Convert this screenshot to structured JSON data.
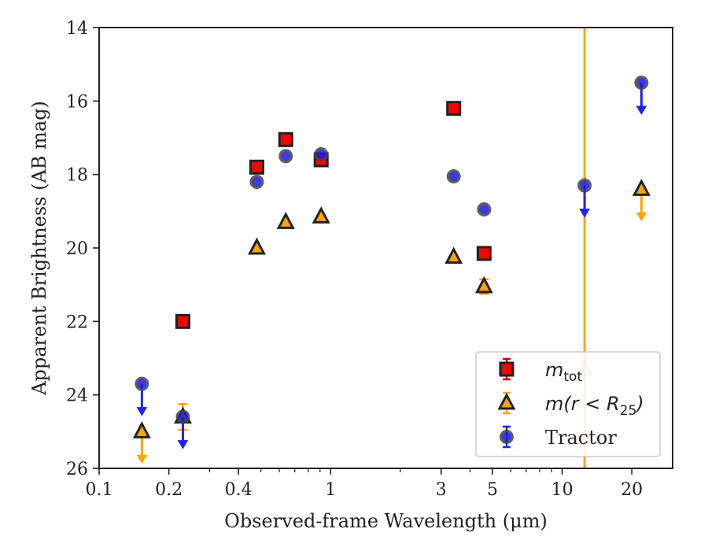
{
  "chart_data": {
    "type": "scatter",
    "xlabel": "Observed-frame Wavelength (μm)",
    "ylabel": "Apparent Brightness (AB mag)",
    "xscale": "log",
    "yaxis_inverted": true,
    "xlim": [
      0.1,
      30
    ],
    "ylim": [
      14,
      26
    ],
    "xticks": [
      {
        "value": 0.1,
        "label": "0.1"
      },
      {
        "value": 0.2,
        "label": "0.2"
      },
      {
        "value": 0.4,
        "label": "0.4"
      },
      {
        "value": 1,
        "label": "1"
      },
      {
        "value": 3,
        "label": "3"
      },
      {
        "value": 5,
        "label": "5"
      },
      {
        "value": 10,
        "label": "10"
      },
      {
        "value": 20,
        "label": "20"
      }
    ],
    "yticks": [
      {
        "value": 14,
        "label": "14"
      },
      {
        "value": 16,
        "label": "16"
      },
      {
        "value": 18,
        "label": "18"
      },
      {
        "value": 20,
        "label": "20"
      },
      {
        "value": 22,
        "label": "22"
      },
      {
        "value": 24,
        "label": "24"
      },
      {
        "value": 26,
        "label": "26"
      }
    ],
    "vertical_line": {
      "x": 12.5,
      "color": "#ffa500"
    },
    "legend": {
      "placement": "lower-right",
      "entries": [
        {
          "series": "m_tot",
          "base": "m",
          "sub": "tot",
          "italic": true
        },
        {
          "series": "m_r25",
          "base": "m(r < R",
          "sub": "25",
          "tail": ")",
          "italic": true
        },
        {
          "series": "tractor",
          "label": "Tractor",
          "italic": false
        }
      ]
    },
    "series": [
      {
        "id": "m_tot",
        "marker": "square",
        "fill": "#ff0000",
        "edge": "#222222",
        "errcolor": "#cc0000",
        "points": [
          {
            "x": 0.23,
            "y": 22.0
          },
          {
            "x": 0.48,
            "y": 17.8
          },
          {
            "x": 0.64,
            "y": 17.05
          },
          {
            "x": 0.91,
            "y": 17.6
          },
          {
            "x": 3.4,
            "y": 16.2
          },
          {
            "x": 4.6,
            "y": 20.15
          }
        ]
      },
      {
        "id": "m_r25",
        "marker": "triangle",
        "fill": "#ffa500",
        "edge": "#222222",
        "errcolor": "#ffa500",
        "points": [
          {
            "x": 0.153,
            "y": 25.0,
            "upper_limit": true
          },
          {
            "x": 0.23,
            "y": 24.6,
            "yerr": 0.35
          },
          {
            "x": 0.48,
            "y": 20.0
          },
          {
            "x": 0.64,
            "y": 19.3
          },
          {
            "x": 0.91,
            "y": 19.15
          },
          {
            "x": 3.4,
            "y": 20.25
          },
          {
            "x": 4.6,
            "y": 21.05,
            "yerr": 0.2
          },
          {
            "x": 12.5,
            "y": 23.3,
            "faded": true
          },
          {
            "x": 22,
            "y": 18.4,
            "upper_limit": true
          }
        ]
      },
      {
        "id": "tractor",
        "marker": "circle",
        "fill": "#1a1adb",
        "edge": "#444444",
        "errcolor": "#2222ee",
        "points": [
          {
            "x": 0.153,
            "y": 23.7,
            "upper_limit": true
          },
          {
            "x": 0.23,
            "y": 24.6,
            "upper_limit": true
          },
          {
            "x": 0.48,
            "y": 18.2
          },
          {
            "x": 0.64,
            "y": 17.5
          },
          {
            "x": 0.91,
            "y": 17.45
          },
          {
            "x": 3.4,
            "y": 18.05
          },
          {
            "x": 4.6,
            "y": 18.95
          },
          {
            "x": 12.5,
            "y": 18.3,
            "upper_limit": true
          },
          {
            "x": 22,
            "y": 15.5,
            "upper_limit": true
          }
        ]
      }
    ]
  }
}
